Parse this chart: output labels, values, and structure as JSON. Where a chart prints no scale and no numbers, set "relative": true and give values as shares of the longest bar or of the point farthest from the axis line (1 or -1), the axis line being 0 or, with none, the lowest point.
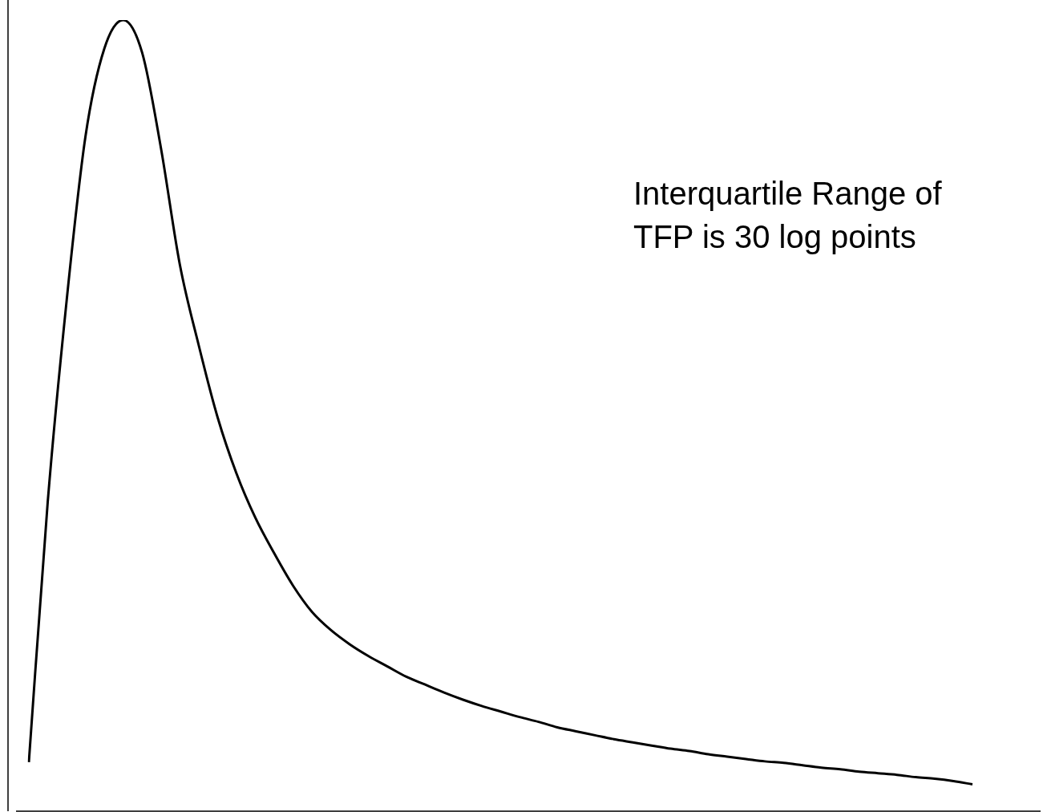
{
  "chart_data": {
    "type": "line",
    "relative": true,
    "color": "#000000",
    "marker": "none",
    "legend": false,
    "categories": [
      null,
      null,
      null,
      null,
      null,
      null,
      null,
      null,
      null,
      null,
      null,
      null,
      null,
      null,
      null,
      null,
      null,
      null,
      null,
      null,
      null,
      null,
      null,
      null,
      null,
      null,
      null,
      null,
      null,
      null,
      null,
      null,
      null,
      null,
      null,
      null,
      null,
      null,
      null,
      null,
      null,
      null,
      null,
      null,
      null,
      null,
      null,
      null,
      null,
      null,
      null
    ],
    "values": [
      0.062,
      0.391,
      0.645,
      0.853,
      0.964,
      1.0,
      0.959,
      0.838,
      0.691,
      0.589,
      0.498,
      0.427,
      0.371,
      0.326,
      0.285,
      0.252,
      0.229,
      0.211,
      0.196,
      0.183,
      0.17,
      0.16,
      0.15,
      0.141,
      0.133,
      0.126,
      0.119,
      0.113,
      0.106,
      0.101,
      0.096,
      0.091,
      0.087,
      0.083,
      0.079,
      0.076,
      0.072,
      0.069,
      0.066,
      0.063,
      0.061,
      0.058,
      0.055,
      0.053,
      0.05,
      0.048,
      0.046,
      0.043,
      0.041,
      0.038,
      0.034
    ],
    "annotations": [
      "Interquartile Range of TFP is 30 log points"
    ]
  }
}
